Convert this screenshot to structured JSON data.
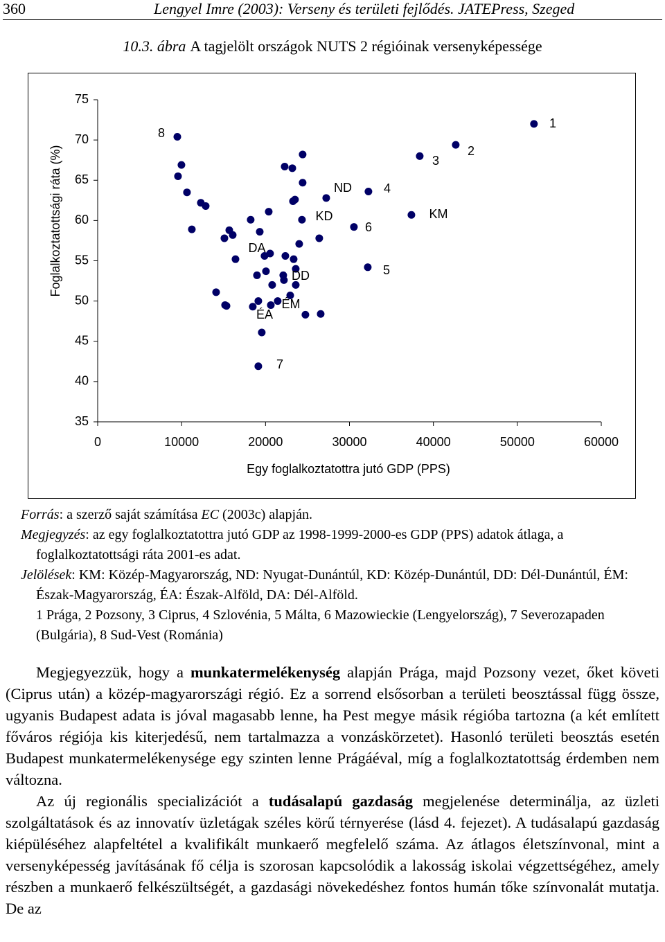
{
  "header": {
    "page_number": "360",
    "citation": "Lengyel Imre (2003): Verseny és területi fejlődés. JATEPress, Szeged"
  },
  "caption": {
    "label": "10.3. ábra",
    "text": "A tagjelölt országok NUTS 2 régióinak versenyképessége"
  },
  "chart_data": {
    "type": "scatter",
    "x_label": "Egy foglalkoztatottra jutó GDP (PPS)",
    "y_label": "Foglalkoztatottsági ráta (%)",
    "x": [
      9490,
      9980,
      9570,
      10640,
      12290,
      12870,
      11220,
      15680,
      16090,
      15100,
      16420,
      14110,
      15180,
      15350,
      18230,
      19310,
      20380,
      22280,
      23190,
      24420,
      24420,
      23270,
      23510,
      24340,
      24010,
      20540,
      19880,
      22360,
      23350,
      23600,
      20050,
      18980,
      22110,
      22190,
      20790,
      23600,
      22940,
      19140,
      21450,
      20630,
      18480,
      24750,
      26570,
      26400,
      27230,
      30530,
      32260,
      32180,
      19550,
      19140,
      37380,
      38370,
      42660,
      51980
    ],
    "values": [
      70.4,
      66.9,
      65.5,
      63.5,
      62.2,
      61.8,
      58.9,
      58.8,
      58.2,
      57.8,
      55.2,
      51.1,
      49.5,
      49.4,
      60.1,
      58.6,
      61.1,
      66.7,
      66.5,
      68.2,
      64.7,
      62.4,
      62.6,
      60.1,
      57.1,
      55.9,
      55.6,
      55.6,
      55.2,
      54.0,
      53.7,
      53.2,
      53.2,
      52.6,
      52.0,
      52.0,
      50.7,
      50.0,
      50.0,
      49.5,
      49.3,
      48.3,
      48.4,
      57.8,
      62.8,
      59.2,
      63.6,
      54.2,
      46.1,
      41.9,
      60.7,
      68.0,
      69.4,
      72.0
    ],
    "color": "#000066",
    "xlim": [
      0,
      60000
    ],
    "xticks": [
      0,
      10000,
      20000,
      30000,
      40000,
      50000,
      60000
    ],
    "ylim": [
      35,
      75
    ],
    "yticks": [
      35,
      40,
      45,
      50,
      55,
      60,
      65,
      70,
      75
    ],
    "annotations": [
      "8",
      "1",
      "2",
      "3",
      "4",
      "ND",
      "KD",
      "6",
      "KM",
      "DA",
      "DD",
      "5",
      "ÉM",
      "ÉA",
      "7"
    ]
  },
  "notes": [
    [
      {
        "text": "Forrás",
        "italic": true
      },
      {
        "text": ": a szerző saját számítása "
      },
      {
        "text": "EC",
        "italic": true
      },
      {
        "text": " (2003c) alapján."
      }
    ],
    [
      {
        "text": "Megjegyzés",
        "italic": true
      },
      {
        "text": ": az egy foglalkoztatottra jutó GDP az 1998-1999-2000-es GDP (PPS) adatok átlaga, a foglalkoztatottsági ráta 2001-es adat."
      }
    ],
    [
      {
        "text": "Jelölések",
        "italic": true
      },
      {
        "text": ": KM: Közép-Magyarország, ND: Nyugat-Dunántúl, KD: Közép-Dunántúl, DD: Dél-Dunántúl, ÉM: Észak-Magyarország, ÉA: Észak-Alföld, DA: Dél-Alföld."
      }
    ],
    [
      {
        "text": "1 Prága, 2 Pozsony, 3 Ciprus, 4 Szlovénia, 5 Málta, 6 Mazowieckie (Lengyelország), 7 Severozapaden (Bulgária), 8 Sud-Vest (Románia)"
      }
    ]
  ],
  "paragraphs": [
    [
      {
        "text": "Megjegyezzük, hogy a "
      },
      {
        "text": "munkatermelékenység",
        "bold": true
      },
      {
        "text": " alapján Prága, majd Pozsony vezet, őket követi (Ciprus után) a közép-magyarországi régió. Ez a sorrend elsősorban a területi beosztással függ össze, ugyanis Budapest adata is jóval magasabb lenne, ha Pest megye másik régióba tartozna (a két említett főváros régiója kis kiterjedésű, nem tartalmazza a vonzáskörzetet). Hasonló területi beosztás esetén Budapest munkatermelékenysége egy szinten lenne Prágáéval, míg a foglalkoztatottság érdemben nem változna."
      }
    ],
    [
      {
        "text": "Az új regionális specializációt a "
      },
      {
        "text": "tudásalapú gazdaság",
        "bold": true
      },
      {
        "text": " megjelenése determinálja, az üzleti szolgáltatások és az innovatív üzletágak széles körű térnyerése (lásd 4. fejezet). A tudásalapú gazdaság kiépüléséhez alapfeltétel a kvalifikált munkaerő megfelelő száma. Az átlagos életszínvonal, mint a versenyképesség javításának fő célja is szorosan kapcsolódik a lakosság iskolai végzettségéhez, amely részben a munkaerő felkészültségét, a gazdasági növekedéshez fontos humán tőke színvonalát mutatja. De az"
      }
    ]
  ]
}
